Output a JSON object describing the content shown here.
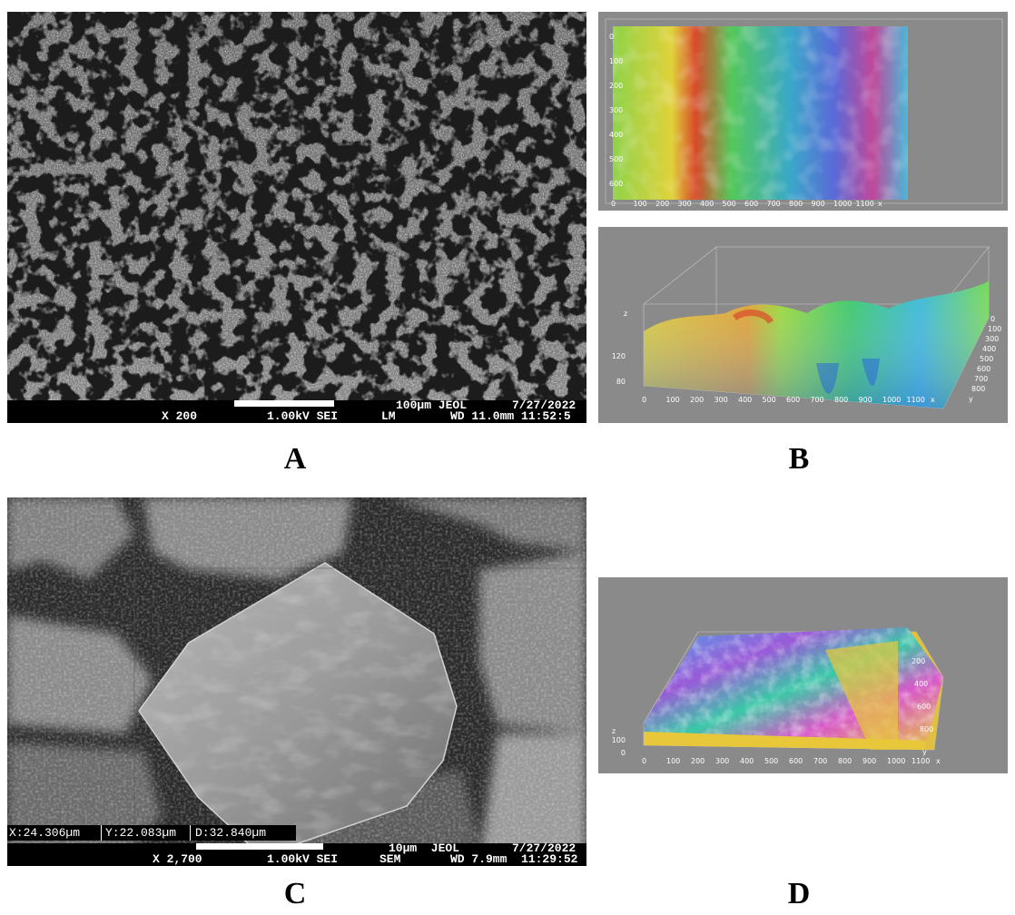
{
  "captions": {
    "a": "A",
    "b": "B",
    "c": "C",
    "d": "D"
  },
  "panel_a": {
    "magnification": "X 200",
    "voltage": "1.00kV SEI",
    "mode": "LM",
    "scale_label": "100µm JEOL",
    "date": "7/27/2022",
    "working_distance": "WD 11.0mm 11:52:5"
  },
  "panel_c": {
    "magnification": "X 2,700",
    "voltage": "1.00kV SEI",
    "mode": "SEM",
    "scale_label": "10µm  JEOL",
    "date": "7/27/2022",
    "working_distance": "WD 7.9mm  11:29:52",
    "measure_x": "X:24.306µm",
    "measure_y": "Y:22.083µm",
    "measure_d": "D:32.840µm"
  },
  "panel_b_top": {
    "y_ticks": [
      "0",
      "100",
      "200",
      "300",
      "400",
      "500",
      "600"
    ],
    "x_ticks": [
      "0",
      "100",
      "200",
      "300",
      "400",
      "500",
      "600",
      "700",
      "800",
      "900",
      "1000",
      "1100",
      "x"
    ]
  },
  "panel_b_bottom": {
    "z_label": "z",
    "z_ticks": [
      "120",
      "80"
    ],
    "x_ticks": [
      "0",
      "100",
      "200",
      "300",
      "400",
      "500",
      "600",
      "700",
      "800",
      "900",
      "1000",
      "1100",
      "x"
    ],
    "y_ticks": [
      "0",
      "100",
      "300",
      "400",
      "500",
      "600",
      "700",
      "800",
      "y"
    ]
  },
  "panel_d": {
    "z_label": "z",
    "z_ticks": [
      "100",
      "0"
    ],
    "x_ticks": [
      "0",
      "100",
      "200",
      "300",
      "400",
      "500",
      "600",
      "700",
      "800",
      "900",
      "1000",
      "1100",
      "x"
    ],
    "y_ticks": [
      "200",
      "400",
      "600",
      "800",
      "y"
    ]
  }
}
